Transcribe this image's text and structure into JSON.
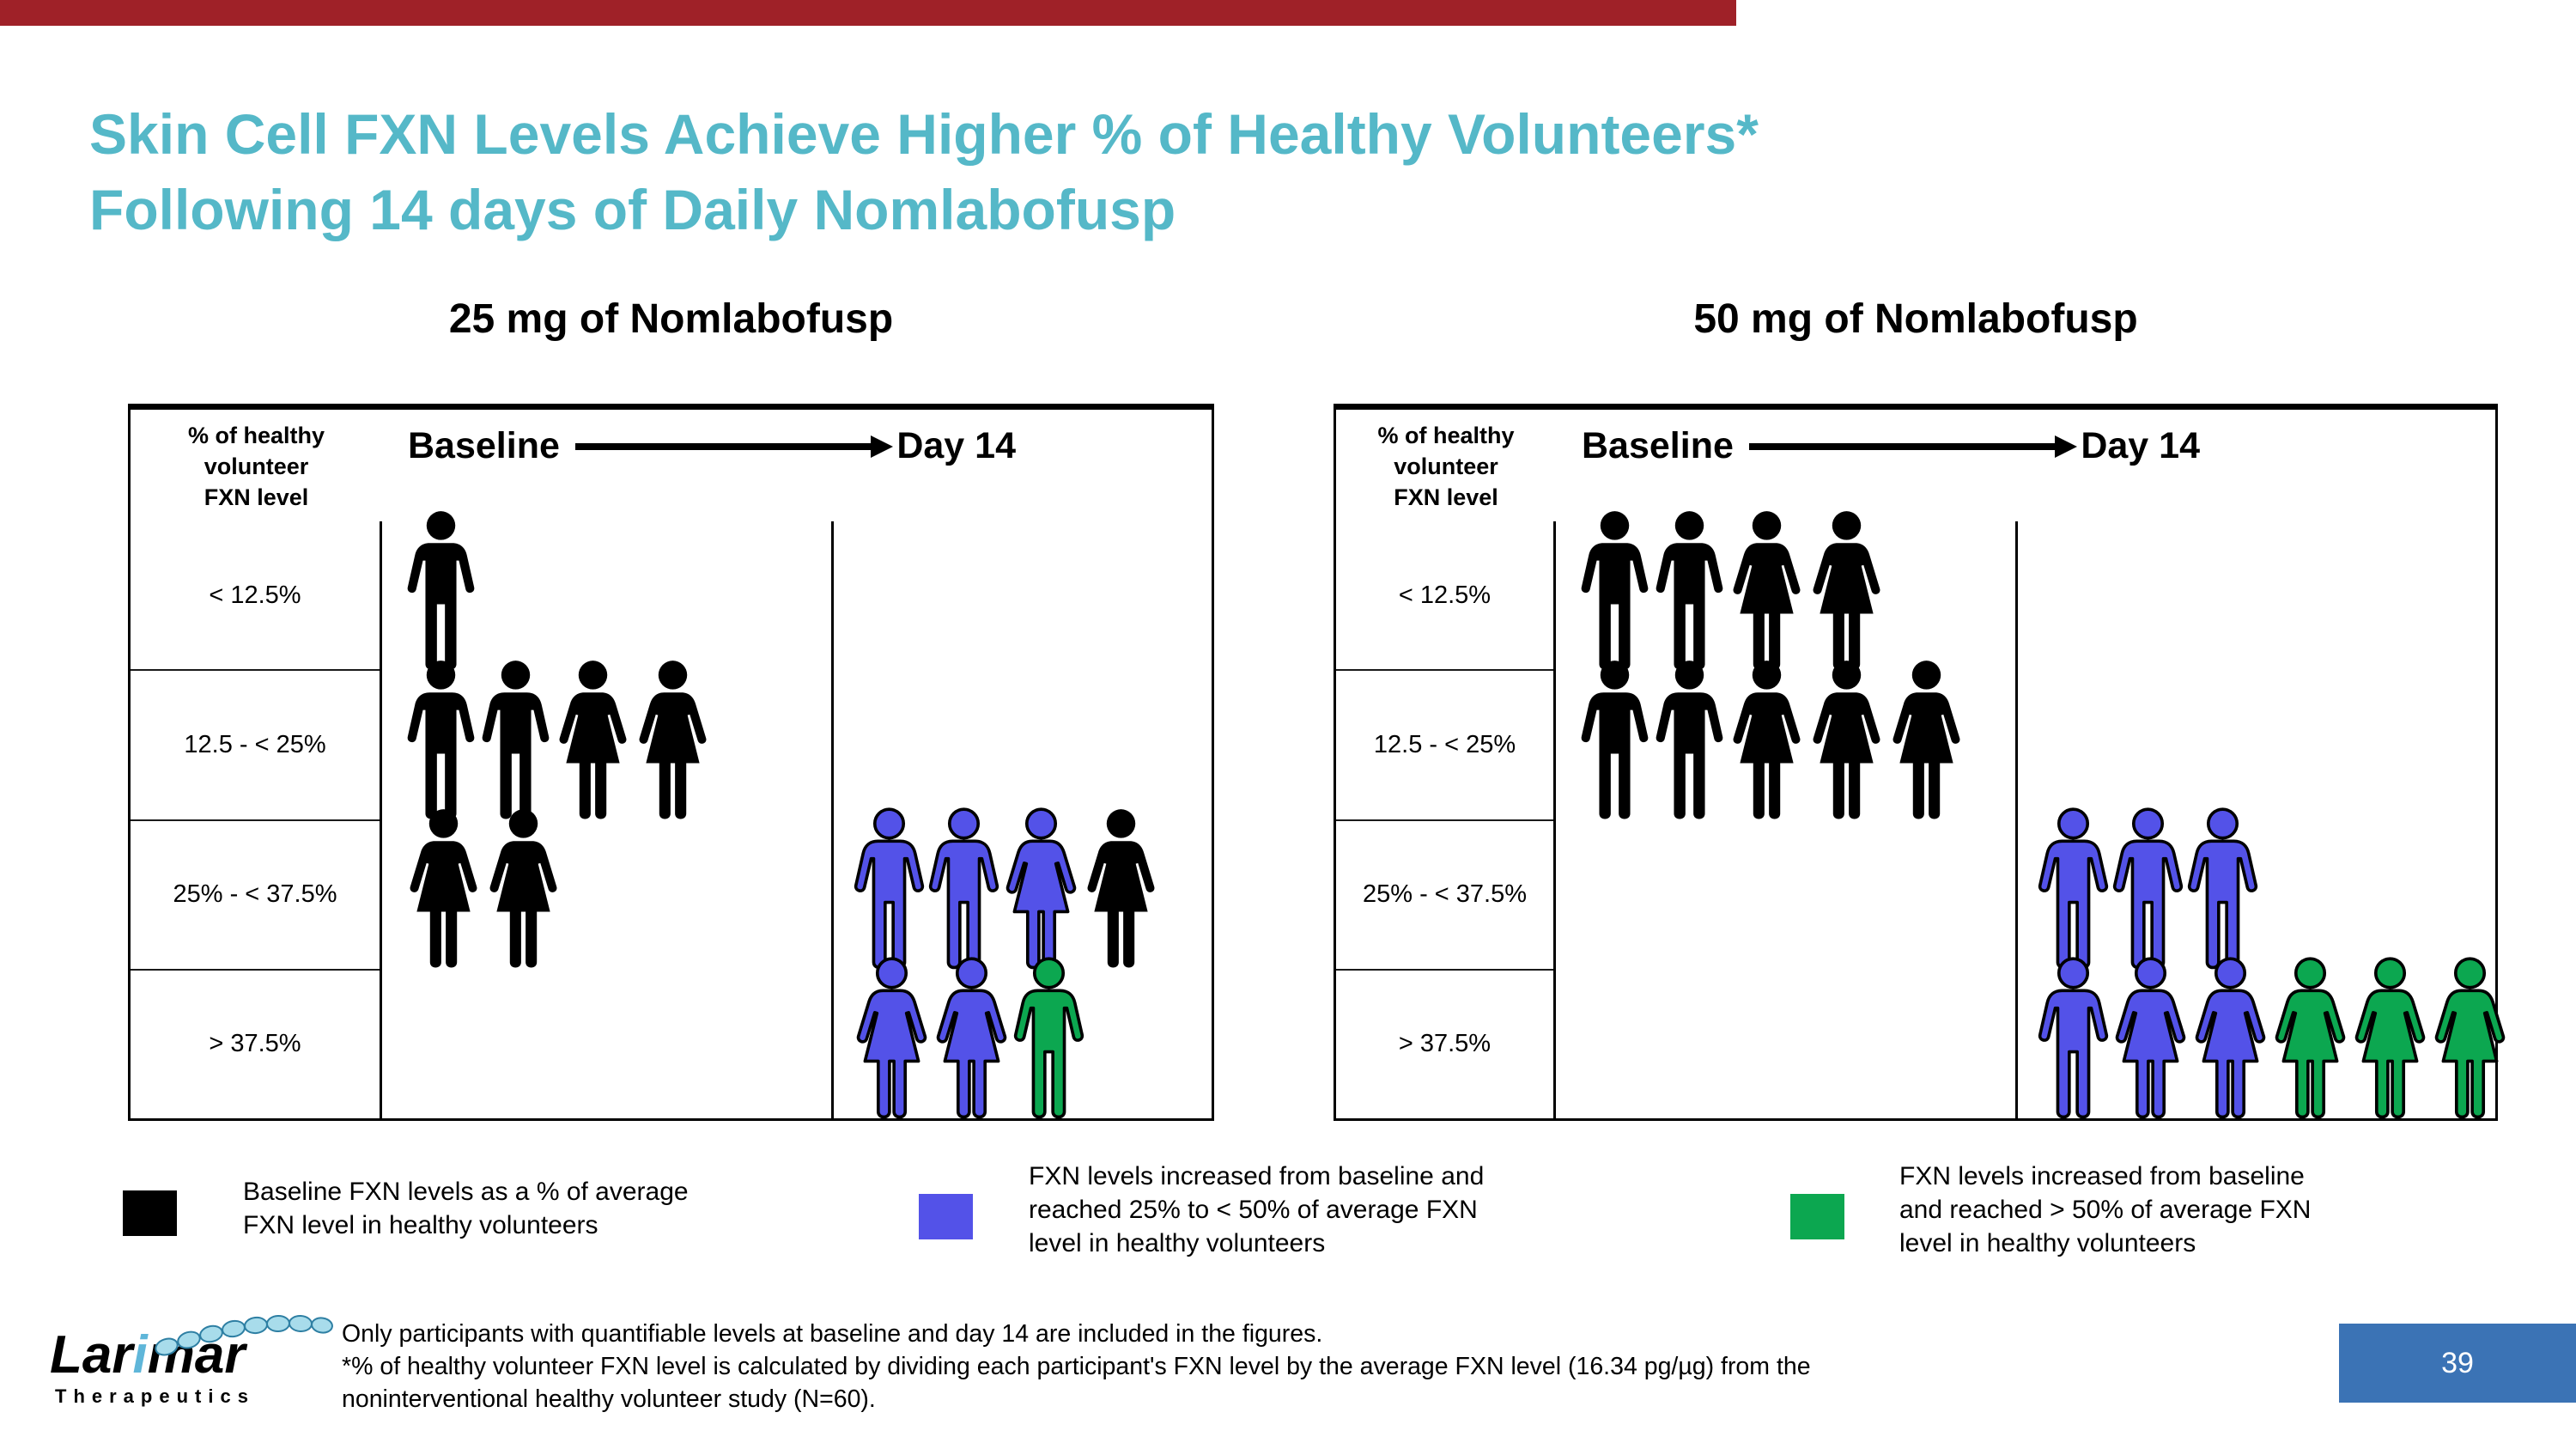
{
  "slide": {
    "top_bar_color": "#9F2128",
    "title_lines": [
      "Skin Cell FXN Levels Achieve Higher % of Healthy Volunteers*",
      "Following 14 days of Daily Nomlabofusp"
    ],
    "title_color": "#55B8C8",
    "page_number": "39",
    "page_box_color": "#3B73B5"
  },
  "logo": {
    "brand": "Larimar",
    "brand_sub": "Therapeutics",
    "accent_color": "#5FB6D9"
  },
  "figure_colors": {
    "black": "#000000",
    "blue": "#5352E8",
    "green": "#0CA750"
  },
  "panels": [
    {
      "title": "25 mg of Nomlabofusp",
      "y_axis_label_lines": [
        "% of healthy",
        "volunteer",
        "FXN level"
      ],
      "timeline": {
        "start": "Baseline",
        "end": "Day 14"
      },
      "rows": [
        {
          "label": "< 12.5%",
          "baseline": [
            {
              "sex": "male",
              "color": "black"
            }
          ],
          "day14": []
        },
        {
          "label": "12.5 - < 25%",
          "baseline": [
            {
              "sex": "male",
              "color": "black"
            },
            {
              "sex": "male",
              "color": "black"
            },
            {
              "sex": "female",
              "color": "black"
            },
            {
              "sex": "female",
              "color": "black"
            }
          ],
          "day14": []
        },
        {
          "label": "25% - < 37.5%",
          "baseline": [
            {
              "sex": "female",
              "color": "black"
            },
            {
              "sex": "female",
              "color": "black"
            }
          ],
          "day14": [
            {
              "sex": "male",
              "color": "blue"
            },
            {
              "sex": "male",
              "color": "blue"
            },
            {
              "sex": "female",
              "color": "blue"
            },
            {
              "sex": "female",
              "color": "black"
            }
          ]
        },
        {
          "label": "> 37.5%",
          "baseline": [],
          "day14": [
            {
              "sex": "female",
              "color": "blue"
            },
            {
              "sex": "female",
              "color": "blue"
            },
            {
              "sex": "male",
              "color": "green"
            }
          ]
        }
      ]
    },
    {
      "title": "50 mg of Nomlabofusp",
      "y_axis_label_lines": [
        "% of healthy",
        "volunteer",
        "FXN level"
      ],
      "timeline": {
        "start": "Baseline",
        "end": "Day 14"
      },
      "rows": [
        {
          "label": "< 12.5%",
          "baseline": [
            {
              "sex": "male",
              "color": "black"
            },
            {
              "sex": "male",
              "color": "black"
            },
            {
              "sex": "female",
              "color": "black"
            },
            {
              "sex": "female",
              "color": "black"
            }
          ],
          "day14": []
        },
        {
          "label": "12.5 - < 25%",
          "baseline": [
            {
              "sex": "male",
              "color": "black"
            },
            {
              "sex": "male",
              "color": "black"
            },
            {
              "sex": "female",
              "color": "black"
            },
            {
              "sex": "female",
              "color": "black"
            },
            {
              "sex": "female",
              "color": "black"
            }
          ],
          "day14": []
        },
        {
          "label": "25% - < 37.5%",
          "baseline": [],
          "day14": [
            {
              "sex": "male",
              "color": "blue"
            },
            {
              "sex": "male",
              "color": "blue"
            },
            {
              "sex": "male",
              "color": "blue"
            }
          ]
        },
        {
          "label": "> 37.5%",
          "baseline": [],
          "day14": [
            {
              "sex": "male",
              "color": "blue"
            },
            {
              "sex": "female",
              "color": "blue"
            },
            {
              "sex": "female",
              "color": "blue"
            },
            {
              "sex": "female",
              "color": "green"
            },
            {
              "sex": "female",
              "color": "green"
            },
            {
              "sex": "female",
              "color": "green"
            }
          ]
        }
      ]
    }
  ],
  "legend": [
    {
      "swatch_color": "#000000",
      "text_lines": [
        "Baseline FXN levels as a % of average",
        "FXN level in healthy volunteers"
      ]
    },
    {
      "swatch_color": "#5352E8",
      "text_lines": [
        "FXN levels increased from baseline and",
        "reached 25% to < 50% of average FXN",
        "level in healthy volunteers"
      ]
    },
    {
      "swatch_color": "#0CA750",
      "text_lines": [
        "FXN levels increased from baseline",
        "and reached > 50% of average FXN",
        "level in healthy volunteers"
      ]
    }
  ],
  "footnotes": [
    "Only participants with quantifiable levels at baseline and day 14 are included in the figures.",
    " *% of healthy volunteer FXN level is calculated by dividing each participant's FXN level by the average FXN level (16.34 pg/µg) from the",
    "noninterventional healthy volunteer study (N=60)."
  ],
  "chart_data": [
    {
      "type": "table",
      "title": "25 mg of Nomlabofusp",
      "categories": [
        "< 12.5%",
        "12.5 - < 25%",
        "25% - < 37.5%",
        "> 37.5%"
      ],
      "series": [
        {
          "name": "Baseline participants (black figures)",
          "values": [
            1,
            4,
            2,
            0
          ]
        },
        {
          "name": "Day 14 still at baseline-range level (black figures)",
          "values": [
            0,
            0,
            1,
            0
          ]
        },
        {
          "name": "Day 14 reached 25% to < 50% of healthy level (blue figures)",
          "values": [
            0,
            0,
            3,
            2
          ]
        },
        {
          "name": "Day 14 reached > 50% of healthy level (green figures)",
          "values": [
            0,
            0,
            0,
            1
          ]
        }
      ],
      "xlabel": "% of healthy volunteer FXN level",
      "legend_position": "bottom"
    },
    {
      "type": "table",
      "title": "50 mg of Nomlabofusp",
      "categories": [
        "< 12.5%",
        "12.5 - < 25%",
        "25% - < 37.5%",
        "> 37.5%"
      ],
      "series": [
        {
          "name": "Baseline participants (black figures)",
          "values": [
            4,
            5,
            0,
            0
          ]
        },
        {
          "name": "Day 14 still at baseline-range level (black figures)",
          "values": [
            0,
            0,
            0,
            0
          ]
        },
        {
          "name": "Day 14 reached 25% to < 50% of healthy level (blue figures)",
          "values": [
            0,
            0,
            3,
            3
          ]
        },
        {
          "name": "Day 14 reached > 50% of healthy level (green figures)",
          "values": [
            0,
            0,
            0,
            3
          ]
        }
      ],
      "xlabel": "% of healthy volunteer FXN level",
      "legend_position": "bottom"
    }
  ]
}
